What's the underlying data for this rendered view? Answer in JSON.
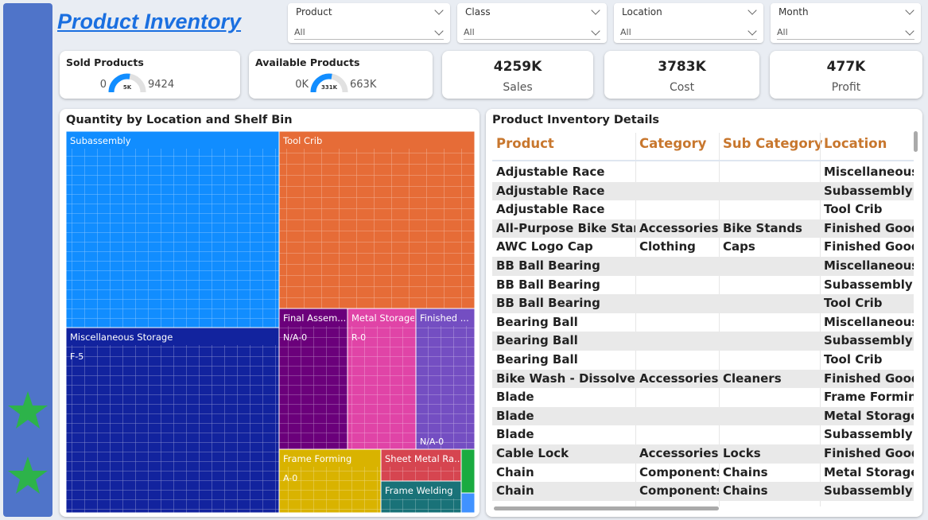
{
  "header": {
    "title": "Product Inventory"
  },
  "filters": [
    {
      "label": "Product",
      "value": "All"
    },
    {
      "label": "Class",
      "value": "All"
    },
    {
      "label": "Location",
      "value": "All"
    },
    {
      "label": "Month",
      "value": "All"
    }
  ],
  "gauges": [
    {
      "title": "Sold Products",
      "min": "0",
      "mid": "5K",
      "max": "9424"
    },
    {
      "title": "Available Products",
      "min": "0K",
      "mid": "331K",
      "max": "663K"
    }
  ],
  "cards": [
    {
      "value": "4259K",
      "label": "Sales"
    },
    {
      "value": "3783K",
      "label": "Cost"
    },
    {
      "value": "477K",
      "label": "Profit"
    }
  ],
  "treemap": {
    "title": "Quantity by Location and Shelf Bin",
    "nodes": [
      {
        "label": "Subassembly"
      },
      {
        "label": "Tool Crib"
      },
      {
        "label": "Miscellaneous Storage",
        "sublabel": "F-5"
      },
      {
        "label": "Final Assem...",
        "sublabel": "N/A-0"
      },
      {
        "label": "Metal Storage",
        "sublabel": "R-0"
      },
      {
        "label": "Finished ...",
        "sublabel": "N/A-0"
      },
      {
        "label": "Frame Forming",
        "sublabel": "A-0"
      },
      {
        "label": "Sheet Metal Ra..."
      },
      {
        "label": "Frame Welding"
      }
    ]
  },
  "table": {
    "title": "Product Inventory Details",
    "columns": [
      "Product",
      "Category",
      "Sub Category",
      "Location"
    ],
    "rows": [
      [
        "Adjustable Race",
        null,
        null,
        "Miscellaneous Storage"
      ],
      [
        "Adjustable Race",
        null,
        null,
        "Subassembly"
      ],
      [
        "Adjustable Race",
        null,
        null,
        "Tool Crib"
      ],
      [
        "All-Purpose Bike Stand",
        "Accessories",
        "Bike Stands",
        "Finished Goods"
      ],
      [
        "AWC Logo Cap",
        "Clothing",
        "Caps",
        "Finished Goods"
      ],
      [
        "BB Ball Bearing",
        null,
        null,
        "Miscellaneous Storage"
      ],
      [
        "BB Ball Bearing",
        null,
        null,
        "Subassembly"
      ],
      [
        "BB Ball Bearing",
        null,
        null,
        "Tool Crib"
      ],
      [
        "Bearing Ball",
        null,
        null,
        "Miscellaneous Storage"
      ],
      [
        "Bearing Ball",
        null,
        null,
        "Subassembly"
      ],
      [
        "Bearing Ball",
        null,
        null,
        "Tool Crib"
      ],
      [
        "Bike Wash - Dissolver",
        "Accessories",
        "Cleaners",
        "Finished Goods"
      ],
      [
        "Blade",
        null,
        null,
        "Frame Forming"
      ],
      [
        "Blade",
        null,
        null,
        "Metal Storage"
      ],
      [
        "Blade",
        null,
        null,
        "Subassembly"
      ],
      [
        "Cable Lock",
        "Accessories",
        "Locks",
        "Finished Goods"
      ],
      [
        "Chain",
        "Components",
        "Chains",
        "Metal Storage"
      ],
      [
        "Chain",
        "Components",
        "Chains",
        "Subassembly"
      ]
    ]
  }
}
